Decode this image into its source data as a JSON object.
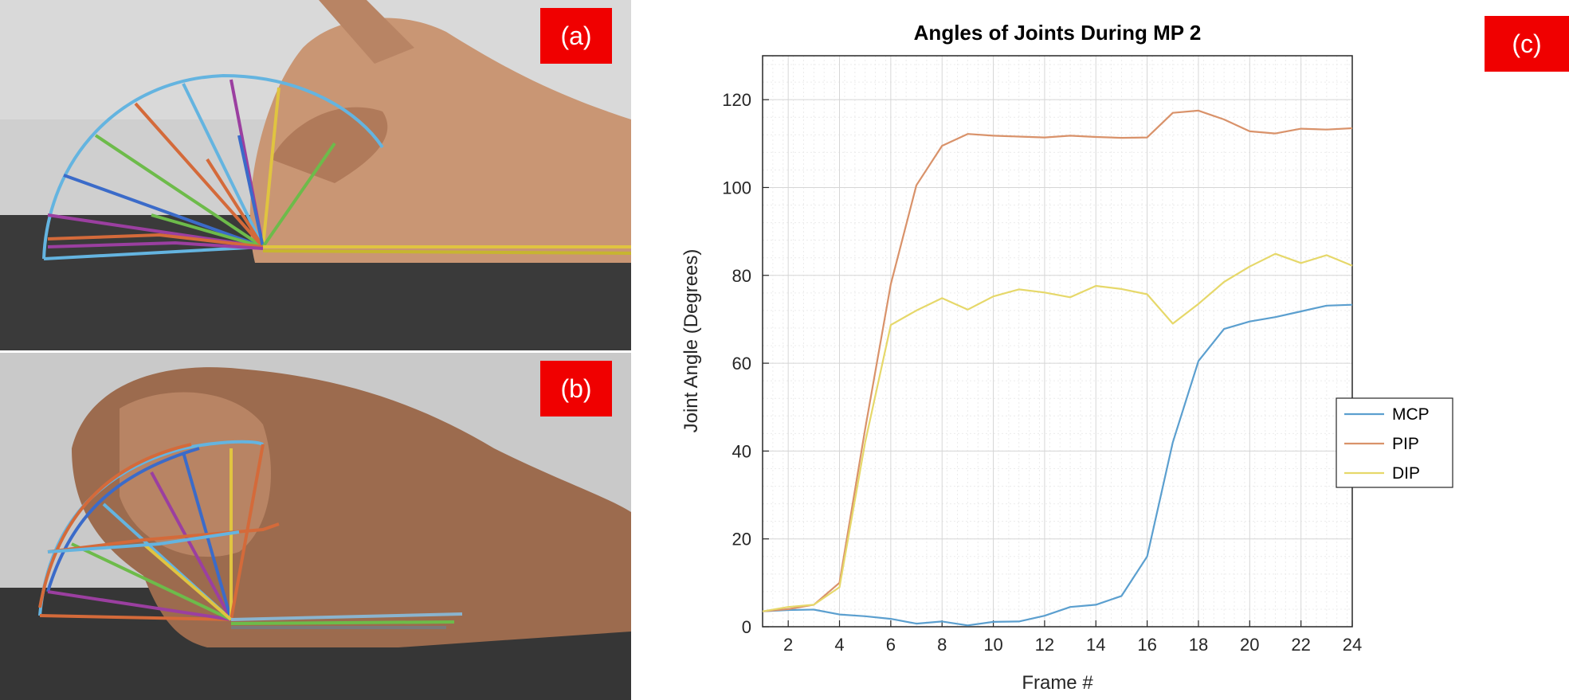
{
  "panels": {
    "a": {
      "label": "(a)"
    },
    "b": {
      "label": "(b)"
    },
    "c": {
      "label": "(c)"
    }
  },
  "colors": {
    "badge": "#f00000",
    "MCP": "#5b9fcf",
    "PIP": "#d9926a",
    "DIP": "#e6d86a"
  },
  "chart_data": {
    "type": "line",
    "title": "Angles of Joints During MP 2",
    "xlabel": "Frame #",
    "ylabel": "Joint Angle (Degrees)",
    "xlim": [
      1,
      24
    ],
    "ylim": [
      0,
      130
    ],
    "xticks": [
      2,
      4,
      6,
      8,
      10,
      12,
      14,
      16,
      18,
      20,
      22,
      24
    ],
    "yticks": [
      0,
      20,
      40,
      60,
      80,
      100,
      120
    ],
    "grid": true,
    "minor_grid": true,
    "legend_position": "right",
    "x": [
      1,
      2,
      3,
      4,
      5,
      6,
      7,
      8,
      9,
      10,
      11,
      12,
      13,
      14,
      15,
      16,
      17,
      18,
      19,
      20,
      21,
      22,
      23,
      24
    ],
    "series": [
      {
        "name": "MCP",
        "values": [
          3.5,
          3.8,
          3.9,
          2.8,
          2.4,
          1.8,
          0.7,
          1.2,
          0.3,
          1.1,
          1.2,
          2.5,
          4.5,
          5.0,
          7.0,
          16.0,
          42.0,
          60.5,
          67.8,
          69.5,
          70.5,
          71.8,
          73.1,
          73.3
        ]
      },
      {
        "name": "PIP",
        "values": [
          3.5,
          4.0,
          5.0,
          10.0,
          45.0,
          78.0,
          100.5,
          109.5,
          112.2,
          111.8,
          111.6,
          111.4,
          111.8,
          111.5,
          111.3,
          111.4,
          117.0,
          117.5,
          115.5,
          112.8,
          112.3,
          113.4,
          113.2,
          113.5
        ]
      },
      {
        "name": "DIP",
        "values": [
          3.5,
          4.5,
          5.0,
          9.0,
          42.0,
          68.7,
          72.0,
          74.8,
          72.2,
          75.2,
          76.8,
          76.1,
          75.0,
          77.6,
          76.9,
          75.7,
          69.0,
          73.5,
          78.5,
          82.0,
          84.9,
          82.8,
          84.6,
          82.2
        ]
      }
    ]
  }
}
